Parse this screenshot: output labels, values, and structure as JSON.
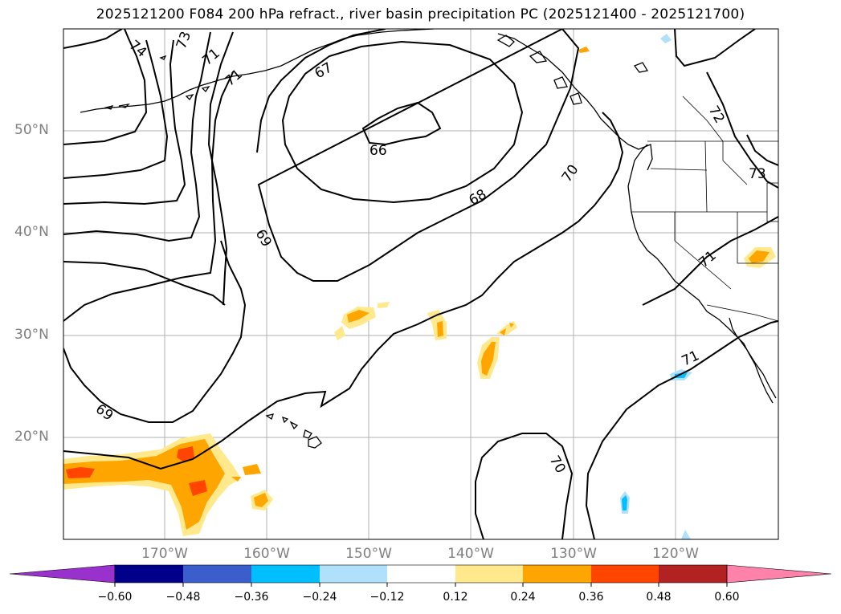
{
  "title": "2025121200 F084 200 hPa refract., river basin precipitation PC (2025121400 - 2025121700)",
  "latitude_labels": [
    "50°N",
    "40°N",
    "30°N",
    "20°N"
  ],
  "longitude_labels": [
    "170°W",
    "160°W",
    "150°W",
    "140°W",
    "130°W",
    "120°W"
  ],
  "contour_labels": [
    "74",
    "73",
    "71",
    "71",
    "67",
    "66",
    "68",
    "69",
    "70",
    "72",
    "73",
    "71",
    "71",
    "69",
    "70"
  ],
  "colorbar": {
    "ticks": [
      "−0.60",
      "−0.48",
      "−0.36",
      "−0.24",
      "−0.12",
      "0.12",
      "0.24",
      "0.36",
      "0.48",
      "0.60"
    ],
    "colors": [
      "#9932cc",
      "#00008b",
      "#3a5fcd",
      "#00bfff",
      "#b0e0fa",
      "#ffffff",
      "#ffe98c",
      "#ffa500",
      "#ff4500",
      "#b22222",
      "#ff82ab"
    ]
  },
  "colors": {
    "positive_low": "#ffe98c",
    "positive_mid": "#ffa500",
    "positive_high": "#ff4500",
    "negative_low": "#b0e0fa",
    "negative_mid": "#00bfff",
    "grid": "#b0b0b0"
  }
}
